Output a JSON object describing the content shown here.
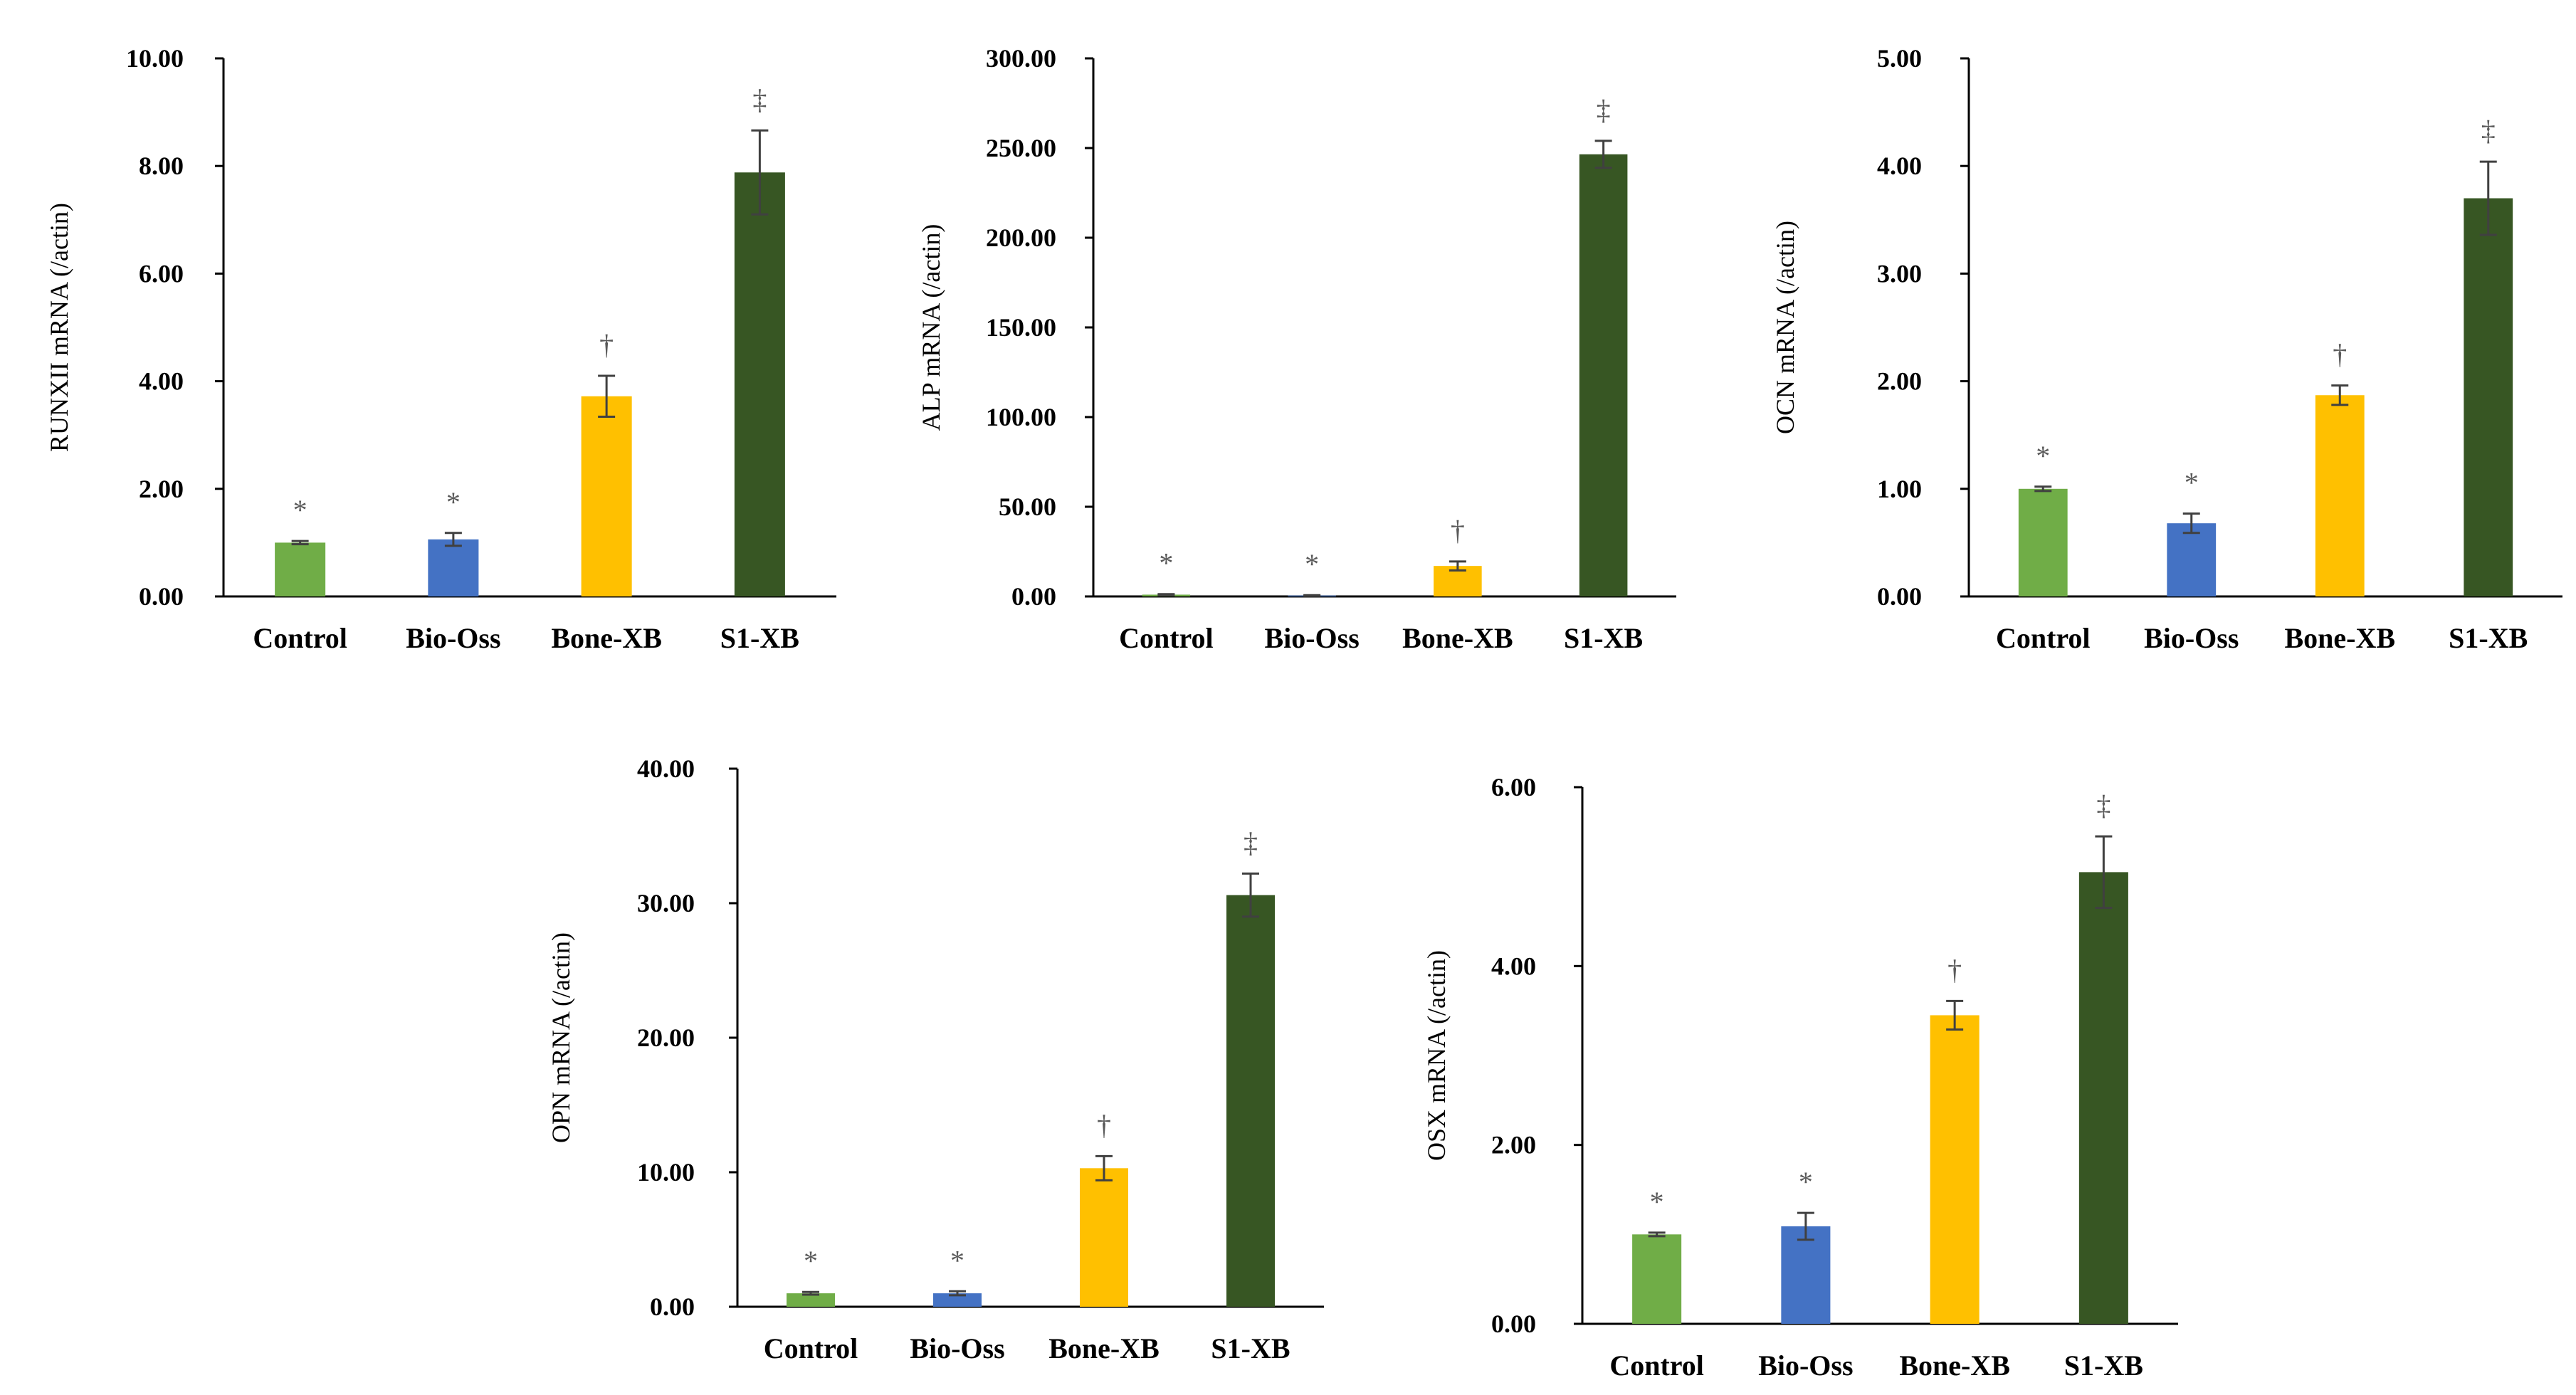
{
  "chart_data": [
    {
      "type": "bar",
      "ylabel": "RUNXII mRNA  (/actin)",
      "categories": [
        "Control",
        "Bio-Oss",
        "Bone-XB",
        "S1-XB"
      ],
      "values": [
        1.0,
        1.06,
        3.72,
        7.88
      ],
      "errors": [
        0.03,
        0.12,
        0.38,
        0.78
      ],
      "significance": [
        "*",
        "*",
        "†",
        "‡"
      ],
      "colors": [
        "#70AD47",
        "#4472C4",
        "#FFC000",
        "#375623"
      ],
      "ylim": [
        0,
        10
      ],
      "yticks": [
        "0.00",
        "2.00",
        "4.00",
        "6.00",
        "8.00",
        "10.00"
      ]
    },
    {
      "type": "bar",
      "ylabel": "ALP mRNA  (/actin)",
      "categories": [
        "Control",
        "Bio-Oss",
        "Bone-XB",
        "S1-XB"
      ],
      "values": [
        1.0,
        0.5,
        17.0,
        246.5
      ],
      "errors": [
        0.3,
        0.2,
        2.5,
        7.5
      ],
      "significance": [
        "*",
        "*",
        "†",
        "‡"
      ],
      "colors": [
        "#70AD47",
        "#4472C4",
        "#FFC000",
        "#375623"
      ],
      "ylim": [
        0,
        300
      ],
      "yticks": [
        "0.00",
        "50.00",
        "100.00",
        "150.00",
        "200.00",
        "250.00",
        "300.00"
      ]
    },
    {
      "type": "bar",
      "ylabel": "OCN mRNA  (/actin)",
      "categories": [
        "Control",
        "Bio-Oss",
        "Bone-XB",
        "S1-XB"
      ],
      "values": [
        1.0,
        0.68,
        1.87,
        3.7
      ],
      "errors": [
        0.02,
        0.09,
        0.09,
        0.34
      ],
      "significance": [
        "*",
        "*",
        "†",
        "‡"
      ],
      "colors": [
        "#70AD47",
        "#4472C4",
        "#FFC000",
        "#375623"
      ],
      "ylim": [
        0,
        5
      ],
      "yticks": [
        "0.00",
        "1.00",
        "2.00",
        "3.00",
        "4.00",
        "5.00"
      ]
    },
    {
      "type": "bar",
      "ylabel": "OPN mRNA  (/actin)",
      "categories": [
        "Control",
        "Bio-Oss",
        "Bone-XB",
        "S1-XB"
      ],
      "values": [
        1.0,
        1.0,
        10.3,
        30.6
      ],
      "errors": [
        0.1,
        0.15,
        0.9,
        1.6
      ],
      "significance": [
        "*",
        "*",
        "†",
        "‡"
      ],
      "colors": [
        "#70AD47",
        "#4472C4",
        "#FFC000",
        "#375623"
      ],
      "ylim": [
        0,
        40
      ],
      "yticks": [
        "0.00",
        "10.00",
        "20.00",
        "30.00",
        "40.00"
      ]
    },
    {
      "type": "bar",
      "ylabel": "OSX  mRNA  (/actin)",
      "categories": [
        "Control",
        "Bio-Oss",
        "Bone-XB",
        "S1-XB"
      ],
      "values": [
        1.0,
        1.09,
        3.45,
        5.05
      ],
      "errors": [
        0.02,
        0.15,
        0.16,
        0.4
      ],
      "significance": [
        "*",
        "*",
        "†",
        "‡"
      ],
      "colors": [
        "#70AD47",
        "#4472C4",
        "#FFC000",
        "#375623"
      ],
      "ylim": [
        0,
        6
      ],
      "yticks": [
        "0.00",
        "2.00",
        "4.00",
        "6.00"
      ]
    }
  ]
}
